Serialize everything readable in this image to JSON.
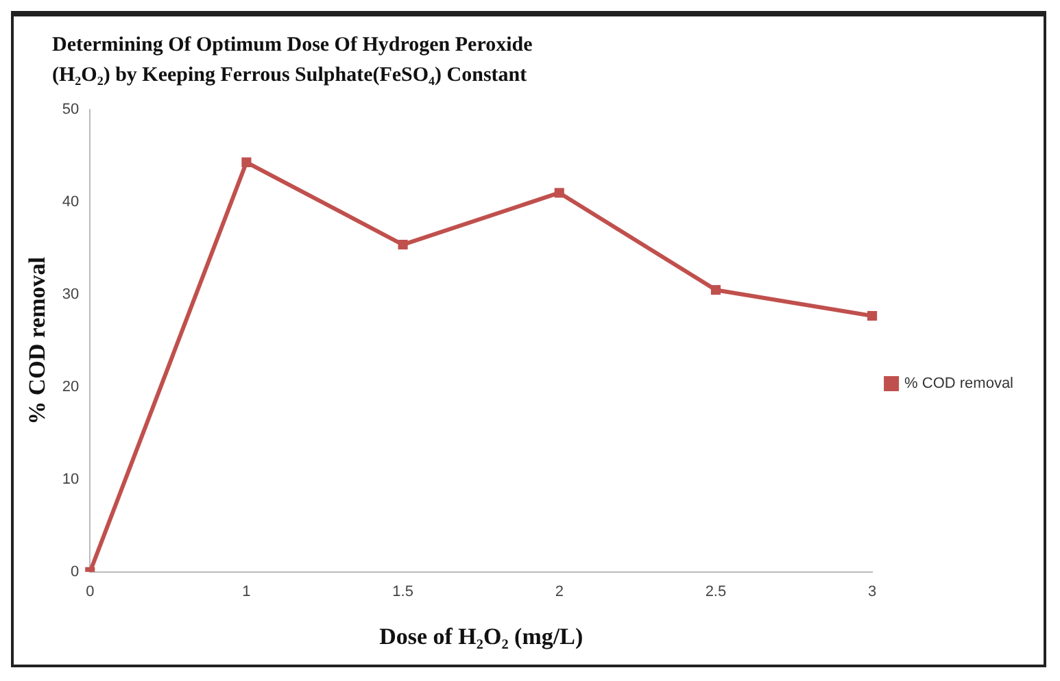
{
  "chart_data": {
    "type": "line",
    "title": "Determining Of  Optimum Dose Of Hydrogen Peroxide (H₂O₂) by Keeping Ferrous Sulphate(FeSO₄) Constant",
    "xlabel": "Dose of H₂O₂ (mg/L)",
    "ylabel": "% COD removal",
    "categories": [
      "0",
      "1",
      "1.5",
      "2",
      "2.5",
      "3"
    ],
    "series": [
      {
        "name": "% COD removal",
        "color": "#c0504d",
        "values": [
          0,
          44.3,
          35.4,
          41,
          30.5,
          27.7
        ]
      }
    ],
    "ylim": [
      0,
      50
    ],
    "yticks": [
      0,
      10,
      20,
      30,
      40,
      50
    ],
    "grid": false,
    "legend": "right",
    "marker": "square",
    "line_style": "solid"
  }
}
